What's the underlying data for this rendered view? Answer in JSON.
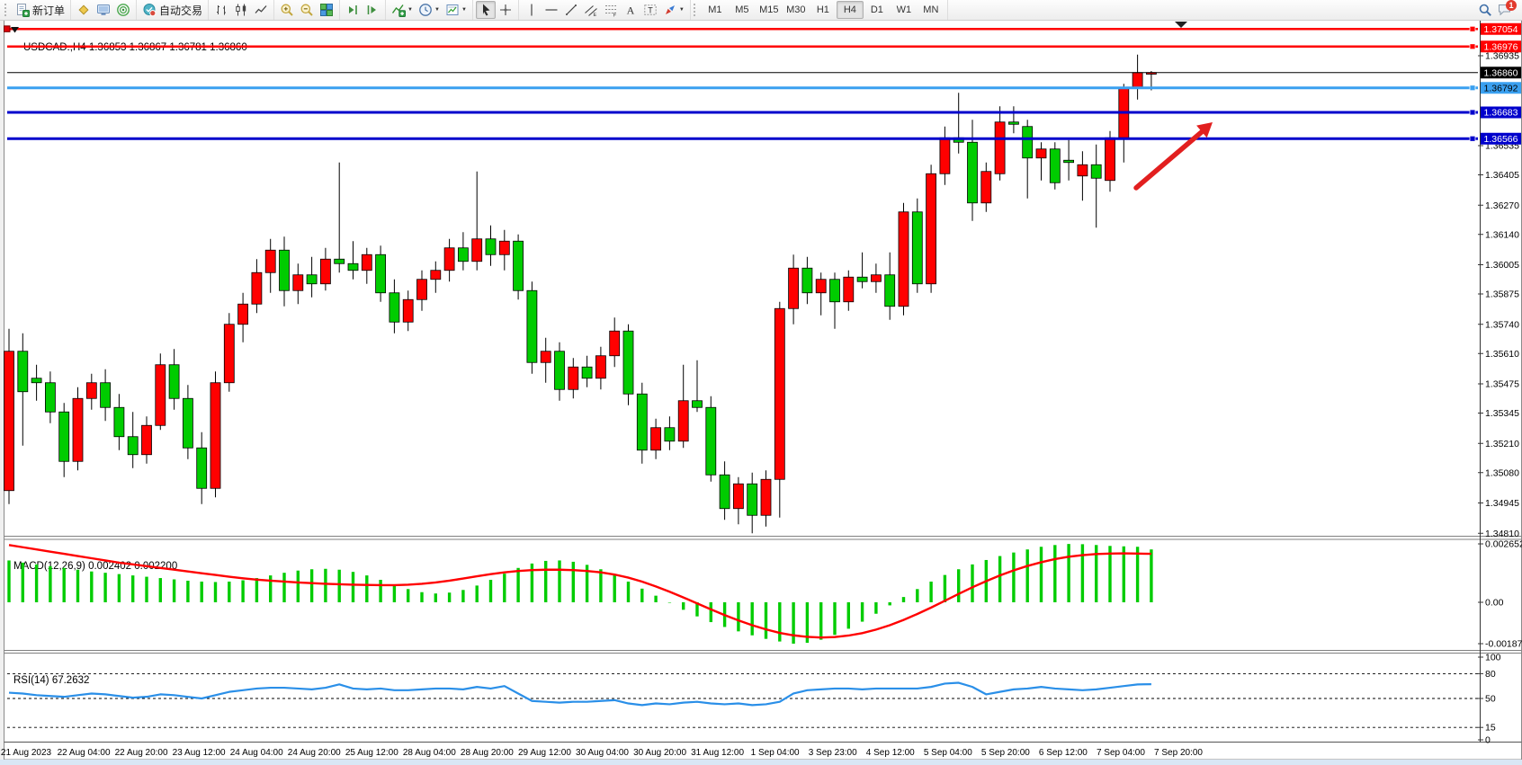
{
  "palette": {
    "candle_up": "#ff0000",
    "candle_down": "#00cc00",
    "wick": "#000000",
    "macd_histogram": "#00cc00",
    "macd_signal": "#ff0000",
    "rsi_line": "#2a8fe8",
    "hline_red": "#ff0000",
    "hline_lightblue": "#3aa0f0",
    "hline_blue": "#0000cc",
    "current_price_bg": "#000000",
    "annotation_arrow": "#e21f1f"
  },
  "toolbar": {
    "groups": [
      {
        "items": [
          {
            "name": "new-order-button",
            "icon": "new-order-icon",
            "label": "新订单"
          }
        ]
      },
      {
        "items": [
          {
            "name": "layouts-button",
            "icon": "layouts-icon"
          },
          {
            "name": "metaeditor-button",
            "icon": "metaeditor-icon"
          },
          {
            "name": "signals-button",
            "icon": "signals-icon"
          }
        ]
      },
      {
        "items": [
          {
            "name": "autotrading-button",
            "icon": "autotrading-icon",
            "label": "自动交易"
          }
        ]
      },
      {
        "items": [
          {
            "name": "bar-chart-button",
            "icon": "bar-chart-icon"
          },
          {
            "name": "candlestick-chart-button",
            "icon": "candlestick-icon"
          },
          {
            "name": "line-chart-button",
            "icon": "line-chart-icon"
          }
        ]
      },
      {
        "items": [
          {
            "name": "zoom-in-button",
            "icon": "zoom-in-icon"
          },
          {
            "name": "zoom-out-button",
            "icon": "zoom-out-icon"
          },
          {
            "name": "tile-windows-button",
            "icon": "tile-windows-icon"
          }
        ]
      },
      {
        "items": [
          {
            "name": "auto-scroll-button",
            "icon": "auto-scroll-icon"
          },
          {
            "name": "chart-shift-button",
            "icon": "chart-shift-icon"
          }
        ]
      },
      {
        "items": [
          {
            "name": "indicators-button",
            "icon": "indicators-icon",
            "dropdown": true
          },
          {
            "name": "periods-button",
            "icon": "clock-icon",
            "dropdown": true
          },
          {
            "name": "templates-button",
            "icon": "template-icon",
            "dropdown": true
          }
        ]
      },
      {
        "items": [
          {
            "name": "cursor-button",
            "icon": "cursor-icon",
            "active": true
          },
          {
            "name": "crosshair-button",
            "icon": "crosshair-icon"
          }
        ]
      },
      {
        "items": [
          {
            "name": "vertical-line-button",
            "icon": "vline-icon"
          },
          {
            "name": "horizontal-line-button",
            "icon": "hline-icon"
          },
          {
            "name": "trendline-button",
            "icon": "trendline-icon"
          },
          {
            "name": "equidistant-channel-button",
            "icon": "channel-icon"
          },
          {
            "name": "fibonacci-button",
            "icon": "fibonacci-icon"
          },
          {
            "name": "text-button",
            "icon": "text-icon"
          },
          {
            "name": "text-label-button",
            "icon": "text-label-icon"
          },
          {
            "name": "arrows-button",
            "icon": "arrows-icon",
            "dropdown": true
          }
        ]
      },
      {
        "type": "timeframes",
        "items": [
          {
            "name": "tf-m1-button",
            "label": "M1"
          },
          {
            "name": "tf-m5-button",
            "label": "M5"
          },
          {
            "name": "tf-m15-button",
            "label": "M15"
          },
          {
            "name": "tf-m30-button",
            "label": "M30"
          },
          {
            "name": "tf-h1-button",
            "label": "H1"
          },
          {
            "name": "tf-h4-button",
            "label": "H4",
            "active": true
          },
          {
            "name": "tf-d1-button",
            "label": "D1"
          },
          {
            "name": "tf-w1-button",
            "label": "W1"
          },
          {
            "name": "tf-mn-button",
            "label": "MN"
          }
        ]
      },
      {
        "align": "right",
        "items": [
          {
            "name": "search-button",
            "icon": "search-icon"
          },
          {
            "name": "notifications-button",
            "icon": "chat-icon",
            "badge": "1"
          }
        ]
      }
    ]
  },
  "chart": {
    "title": "USDCAD.,H4  1.36853 1.36867 1.36781 1.36860",
    "macd_label": "MACD(12,26,9) 0.002402 0.002200",
    "rsi_label": "RSI(14) 67.2632"
  },
  "chart_data": {
    "type": "candlestick",
    "symbol_period": "USDCAD.,H4",
    "ohlc_display": {
      "open": "1.36853",
      "high": "1.36867",
      "low": "1.36781",
      "close": "1.36860"
    },
    "price_ticks": [
      "1.36935",
      "1.36535",
      "1.36405",
      "1.36270",
      "1.36140",
      "1.36005",
      "1.35875",
      "1.35740",
      "1.35610",
      "1.35475",
      "1.35345",
      "1.35210",
      "1.35080",
      "1.34945",
      "1.34810"
    ],
    "time_labels": [
      "21 Aug 2023",
      "22 Aug 04:00",
      "22 Aug 20:00",
      "23 Aug 12:00",
      "24 Aug 04:00",
      "24 Aug 20:00",
      "25 Aug 12:00",
      "28 Aug 04:00",
      "28 Aug 20:00",
      "29 Aug 12:00",
      "30 Aug 04:00",
      "30 Aug 20:00",
      "31 Aug 12:00",
      "1 Sep 04:00",
      "3 Sep 23:00",
      "4 Sep 12:00",
      "5 Sep 04:00",
      "5 Sep 20:00",
      "6 Sep 12:00",
      "7 Sep 04:00",
      "7 Sep 20:00"
    ],
    "hlines": [
      {
        "label": "1.37054",
        "value": 1.37054,
        "color_key": "hline_red"
      },
      {
        "label": "1.36976",
        "value": 1.36976,
        "color_key": "hline_red"
      },
      {
        "label": "1.36792",
        "value": 1.36792,
        "color_key": "hline_lightblue"
      },
      {
        "label": "1.36683",
        "value": 1.36683,
        "color_key": "hline_blue"
      },
      {
        "label": "1.36566",
        "value": 1.36566,
        "color_key": "hline_blue"
      }
    ],
    "current_price": {
      "label": "1.36860",
      "value": 1.3686
    },
    "candles": [
      [
        1.35,
        1.3572,
        1.3494,
        1.3562
      ],
      [
        1.3562,
        1.357,
        1.352,
        1.3544
      ],
      [
        1.355,
        1.3556,
        1.354,
        1.3548
      ],
      [
        1.3548,
        1.3553,
        1.353,
        1.3535
      ],
      [
        1.3535,
        1.3539,
        1.3506,
        1.3513
      ],
      [
        1.3513,
        1.3546,
        1.3509,
        1.3541
      ],
      [
        1.3541,
        1.3552,
        1.3536,
        1.3548
      ],
      [
        1.3548,
        1.3554,
        1.3531,
        1.3537
      ],
      [
        1.3537,
        1.3543,
        1.3518,
        1.3524
      ],
      [
        1.3524,
        1.3535,
        1.351,
        1.3516
      ],
      [
        1.3516,
        1.3533,
        1.3512,
        1.3529
      ],
      [
        1.3529,
        1.3561,
        1.3527,
        1.3556
      ],
      [
        1.3556,
        1.3563,
        1.3536,
        1.3541
      ],
      [
        1.3541,
        1.3547,
        1.3514,
        1.3519
      ],
      [
        1.3519,
        1.3526,
        1.3494,
        1.3501
      ],
      [
        1.3501,
        1.3553,
        1.3497,
        1.3548
      ],
      [
        1.3548,
        1.3579,
        1.3544,
        1.3574
      ],
      [
        1.3574,
        1.3588,
        1.3566,
        1.3583
      ],
      [
        1.3583,
        1.3603,
        1.3579,
        1.3597
      ],
      [
        1.3597,
        1.3612,
        1.3588,
        1.3607
      ],
      [
        1.3607,
        1.3613,
        1.3582,
        1.3589
      ],
      [
        1.3589,
        1.3601,
        1.3583,
        1.3596
      ],
      [
        1.3596,
        1.3604,
        1.3586,
        1.3592
      ],
      [
        1.3592,
        1.3608,
        1.3589,
        1.3603
      ],
      [
        1.3603,
        1.3646,
        1.3597,
        1.3601
      ],
      [
        1.3601,
        1.3611,
        1.3594,
        1.3598
      ],
      [
        1.3598,
        1.3608,
        1.3592,
        1.3605
      ],
      [
        1.3605,
        1.3609,
        1.3584,
        1.3588
      ],
      [
        1.3588,
        1.3594,
        1.357,
        1.3575
      ],
      [
        1.3575,
        1.3589,
        1.3571,
        1.3585
      ],
      [
        1.3585,
        1.3598,
        1.358,
        1.3594
      ],
      [
        1.3594,
        1.3602,
        1.3588,
        1.3598
      ],
      [
        1.3598,
        1.3612,
        1.3593,
        1.3608
      ],
      [
        1.3608,
        1.3615,
        1.3598,
        1.3602
      ],
      [
        1.3602,
        1.3642,
        1.3598,
        1.3612
      ],
      [
        1.3612,
        1.3618,
        1.36,
        1.3605
      ],
      [
        1.3605,
        1.3616,
        1.3598,
        1.3611
      ],
      [
        1.3611,
        1.3614,
        1.3585,
        1.3589
      ],
      [
        1.3589,
        1.3593,
        1.3552,
        1.3557
      ],
      [
        1.3557,
        1.3568,
        1.3548,
        1.3562
      ],
      [
        1.3562,
        1.3566,
        1.354,
        1.3545
      ],
      [
        1.3545,
        1.3559,
        1.3541,
        1.3555
      ],
      [
        1.3555,
        1.356,
        1.3546,
        1.355
      ],
      [
        1.355,
        1.3564,
        1.3545,
        1.356
      ],
      [
        1.356,
        1.3577,
        1.3555,
        1.3571
      ],
      [
        1.3571,
        1.3574,
        1.3538,
        1.3543
      ],
      [
        1.3543,
        1.3548,
        1.3512,
        1.3518
      ],
      [
        1.3518,
        1.3532,
        1.3514,
        1.3528
      ],
      [
        1.3528,
        1.3533,
        1.3518,
        1.3522
      ],
      [
        1.3522,
        1.3556,
        1.3519,
        1.354
      ],
      [
        1.354,
        1.3558,
        1.3535,
        1.3537
      ],
      [
        1.3537,
        1.3542,
        1.3504,
        1.3507
      ],
      [
        1.3507,
        1.3513,
        1.3487,
        1.3492
      ],
      [
        1.3492,
        1.3506,
        1.3485,
        1.3503
      ],
      [
        1.3503,
        1.3508,
        1.3481,
        1.3489
      ],
      [
        1.3489,
        1.3509,
        1.3484,
        1.3505
      ],
      [
        1.3505,
        1.3584,
        1.3488,
        1.3581
      ],
      [
        1.3581,
        1.3605,
        1.3574,
        1.3599
      ],
      [
        1.3599,
        1.3604,
        1.3583,
        1.3588
      ],
      [
        1.3588,
        1.3597,
        1.3578,
        1.3594
      ],
      [
        1.3594,
        1.3597,
        1.3572,
        1.3584
      ],
      [
        1.3584,
        1.3598,
        1.358,
        1.3595
      ],
      [
        1.3595,
        1.3606,
        1.359,
        1.3593
      ],
      [
        1.3593,
        1.3601,
        1.3588,
        1.3596
      ],
      [
        1.3596,
        1.3606,
        1.3576,
        1.3582
      ],
      [
        1.3582,
        1.3628,
        1.3578,
        1.3624
      ],
      [
        1.3624,
        1.363,
        1.3588,
        1.3592
      ],
      [
        1.3592,
        1.3645,
        1.3588,
        1.3641
      ],
      [
        1.3641,
        1.3662,
        1.3636,
        1.3657
      ],
      [
        1.3657,
        1.3677,
        1.365,
        1.3655
      ],
      [
        1.3655,
        1.3665,
        1.362,
        1.3628
      ],
      [
        1.3628,
        1.3646,
        1.3624,
        1.3642
      ],
      [
        1.3641,
        1.3671,
        1.3638,
        1.3664
      ],
      [
        1.3664,
        1.3671,
        1.3659,
        1.3663
      ],
      [
        1.3662,
        1.3665,
        1.363,
        1.3648
      ],
      [
        1.3648,
        1.3655,
        1.3638,
        1.3652
      ],
      [
        1.3652,
        1.3655,
        1.3634,
        1.3637
      ],
      [
        1.3647,
        1.3656,
        1.3638,
        1.3646
      ],
      [
        1.364,
        1.3651,
        1.3629,
        1.3645
      ],
      [
        1.3645,
        1.3654,
        1.3617,
        1.3639
      ],
      [
        1.3638,
        1.366,
        1.3633,
        1.3657
      ],
      [
        1.3657,
        1.3681,
        1.3646,
        1.3679
      ],
      [
        1.3679,
        1.3694,
        1.3674,
        1.3686
      ],
      [
        1.36853,
        1.36867,
        1.36781,
        1.3686
      ]
    ],
    "macd": {
      "params": "12,26,9",
      "main_value": 0.002402,
      "signal_value": 0.0022,
      "ticks": [
        {
          "v": 0.002652,
          "label": "0.002652"
        },
        {
          "v": 0,
          "label": "0.00"
        },
        {
          "v": -0.001879,
          "label": "-0.001879"
        }
      ],
      "histogram": [
        0.0019,
        0.0018,
        0.00172,
        0.00164,
        0.00156,
        0.00148,
        0.0014,
        0.00134,
        0.00128,
        0.00122,
        0.00116,
        0.0011,
        0.00104,
        0.00098,
        0.00094,
        0.00092,
        0.00094,
        0.001,
        0.0011,
        0.00122,
        0.00134,
        0.00144,
        0.0015,
        0.00152,
        0.00148,
        0.00138,
        0.00122,
        0.00102,
        0.0008,
        0.0006,
        0.00046,
        0.0004,
        0.00044,
        0.00056,
        0.00076,
        0.00102,
        0.0013,
        0.00156,
        0.00176,
        0.00188,
        0.0019,
        0.00184,
        0.0017,
        0.0015,
        0.00124,
        0.00094,
        0.00062,
        0.0003,
        -2e-05,
        -0.00034,
        -0.00064,
        -0.0009,
        -0.00112,
        -0.00132,
        -0.0015,
        -0.00166,
        -0.00178,
        -0.00188,
        -0.00184,
        -0.0017,
        -0.00148,
        -0.0012,
        -0.00088,
        -0.00052,
        -0.00014,
        0.00024,
        0.0006,
        0.00094,
        0.00124,
        0.0015,
        0.00172,
        0.00192,
        0.0021,
        0.00226,
        0.0024,
        0.00252,
        0.0026,
        0.00265,
        0.00264,
        0.0026,
        0.00256,
        0.00254,
        0.00252,
        0.0024
      ],
      "signal": [
        0.0026,
        0.0025,
        0.0024,
        0.0023,
        0.0022,
        0.0021,
        0.002,
        0.0019,
        0.0018,
        0.00172,
        0.00164,
        0.00156,
        0.00148,
        0.0014,
        0.00132,
        0.00124,
        0.00116,
        0.00109,
        0.00103,
        0.00098,
        0.00094,
        0.0009,
        0.00087,
        0.00084,
        0.00082,
        0.0008,
        0.00079,
        0.00078,
        0.00078,
        0.0008,
        0.00084,
        0.0009,
        0.00098,
        0.00108,
        0.00118,
        0.00128,
        0.00136,
        0.00142,
        0.00146,
        0.00148,
        0.00148,
        0.00146,
        0.00142,
        0.00136,
        0.00126,
        0.00112,
        0.00094,
        0.00072,
        0.00048,
        0.00022,
        -5e-05,
        -0.00032,
        -0.00058,
        -0.00082,
        -0.00104,
        -0.00123,
        -0.00139,
        -0.0015,
        -0.00157,
        -0.0016,
        -0.00158,
        -0.00151,
        -0.0014,
        -0.00124,
        -0.00104,
        -0.0008,
        -0.00053,
        -0.00024,
        7e-05,
        0.00038,
        0.00068,
        0.00096,
        0.00122,
        0.00145,
        0.00165,
        0.00182,
        0.00196,
        0.00207,
        0.00214,
        0.00219,
        0.00221,
        0.00222,
        0.00221,
        0.0022
      ]
    },
    "rsi": {
      "period": 14,
      "last_value": 67.2632,
      "ticks": [
        {
          "v": 100,
          "label": "100"
        },
        {
          "v": 80,
          "label": "80"
        },
        {
          "v": 50,
          "label": "50"
        },
        {
          "v": 15,
          "label": "15"
        },
        {
          "v": 0,
          "label": "0"
        }
      ],
      "dashed_levels": [
        80,
        50,
        15
      ],
      "values": [
        57,
        56,
        54,
        53,
        52,
        54,
        56,
        55,
        53,
        51,
        52,
        55,
        54,
        52,
        50,
        54,
        58,
        60,
        62,
        63,
        63,
        62,
        61,
        63,
        67,
        62,
        61,
        62,
        60,
        60,
        61,
        62,
        62,
        61,
        64,
        62,
        65,
        56,
        47,
        46,
        45,
        46,
        46,
        47,
        48,
        44,
        42,
        44,
        43,
        45,
        46,
        44,
        43,
        44,
        42,
        43,
        46,
        56,
        60,
        61,
        62,
        62,
        61,
        62,
        62,
        62,
        62,
        64,
        68,
        69,
        64,
        55,
        58,
        61,
        62,
        64,
        62,
        61,
        60,
        61,
        63,
        65,
        67,
        67.26
      ]
    },
    "arrow_annotation": {
      "from": [
        1263,
        209
      ],
      "to": [
        1348,
        136
      ]
    }
  }
}
